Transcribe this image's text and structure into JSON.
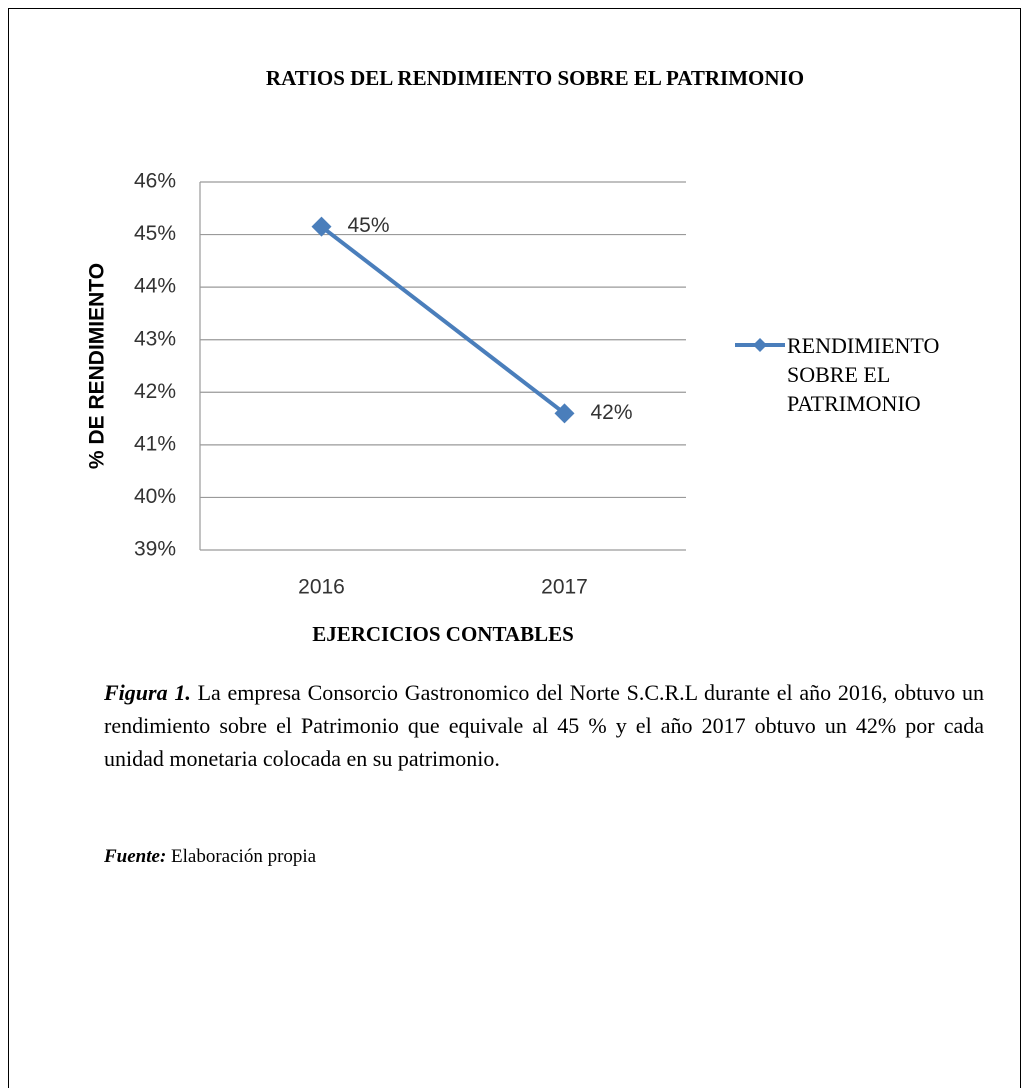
{
  "chart_data": {
    "type": "line",
    "title": "RATIOS DEL RENDIMIENTO SOBRE EL PATRIMONIO",
    "x_label": "EJERCICIOS CONTABLES",
    "y_label": "% DE RENDIMIENTO",
    "categories": [
      "2016",
      "2017"
    ],
    "series": [
      {
        "name": "RENDIMIENTO SOBRE EL PATRIMONIO",
        "color": "#4a7ebb",
        "values": [
          45.15,
          41.6
        ],
        "value_labels": [
          "45%",
          "42%"
        ]
      }
    ],
    "ylim": [
      39,
      46
    ],
    "yticks": [
      {
        "value": 39,
        "label": "39%"
      },
      {
        "value": 40,
        "label": "40%"
      },
      {
        "value": 41,
        "label": "41%"
      },
      {
        "value": 42,
        "label": "42%"
      },
      {
        "value": 43,
        "label": "43%"
      },
      {
        "value": 44,
        "label": "44%"
      },
      {
        "value": 45,
        "label": "45%"
      },
      {
        "value": 46,
        "label": "46%"
      }
    ],
    "grid": true,
    "legend": "right"
  },
  "caption": {
    "label": "Figura 1.",
    "text": "La empresa Consorcio Gastronomico del Norte S.C.R.L durante el año 2016, obtuvo un rendimiento sobre el Patrimonio que equivale al 45 % y el año 2017 obtuvo un 42% por cada unidad monetaria colocada en su patrimonio."
  },
  "source": {
    "label": "Fuente:",
    "text": "Elaboración propia"
  }
}
